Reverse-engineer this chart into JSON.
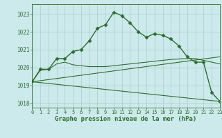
{
  "line1": {
    "x": [
      0,
      1,
      2,
      3,
      4,
      5,
      6,
      7,
      8,
      9,
      10,
      11,
      12,
      13,
      14,
      15,
      16,
      17,
      18,
      19,
      20,
      21,
      22,
      23
    ],
    "y": [
      1019.2,
      1019.9,
      1019.9,
      1020.5,
      1020.5,
      1020.9,
      1021.0,
      1021.5,
      1022.2,
      1022.4,
      1023.1,
      1022.9,
      1022.5,
      1022.0,
      1021.7,
      1021.9,
      1021.8,
      1021.6,
      1021.2,
      1020.6,
      1020.3,
      1020.3,
      1018.6,
      1018.1
    ],
    "color": "#2d6e2d",
    "marker": "D",
    "markersize": 2.5,
    "linewidth": 1.0
  },
  "line2": {
    "x": [
      0,
      1,
      2,
      3,
      4,
      5,
      6,
      7,
      8,
      9,
      10,
      11,
      12,
      13,
      14,
      15,
      16,
      17,
      18,
      19,
      20,
      21,
      22,
      23
    ],
    "y": [
      1019.2,
      1019.85,
      1019.9,
      1020.2,
      1020.3,
      1020.15,
      1020.1,
      1020.05,
      1020.05,
      1020.05,
      1020.1,
      1020.15,
      1020.2,
      1020.25,
      1020.3,
      1020.35,
      1020.4,
      1020.45,
      1020.48,
      1020.5,
      1020.5,
      1020.4,
      1020.3,
      1020.2
    ],
    "color": "#2d6e2d",
    "linewidth": 0.8
  },
  "line3": {
    "x": [
      0,
      23
    ],
    "y": [
      1019.2,
      1018.1
    ],
    "color": "#2d6e2d",
    "linewidth": 0.8
  },
  "line4": {
    "x": [
      0,
      23
    ],
    "y": [
      1019.2,
      1020.6
    ],
    "color": "#2d6e2d",
    "linewidth": 0.8
  },
  "ylim": [
    1017.75,
    1023.55
  ],
  "xlim": [
    0,
    23
  ],
  "yticks": [
    1018,
    1019,
    1020,
    1021,
    1022,
    1023
  ],
  "xticks": [
    0,
    1,
    2,
    3,
    4,
    5,
    6,
    7,
    8,
    9,
    10,
    11,
    12,
    13,
    14,
    15,
    16,
    17,
    18,
    19,
    20,
    21,
    22,
    23
  ],
  "xlabel": "Graphe pression niveau de la mer (hPa)",
  "bg_color": "#cce9eb",
  "grid_color": "#aacccc",
  "line_color": "#2d6e2d",
  "tick_labelsize": 5.0,
  "xlabel_fontsize": 6.5
}
